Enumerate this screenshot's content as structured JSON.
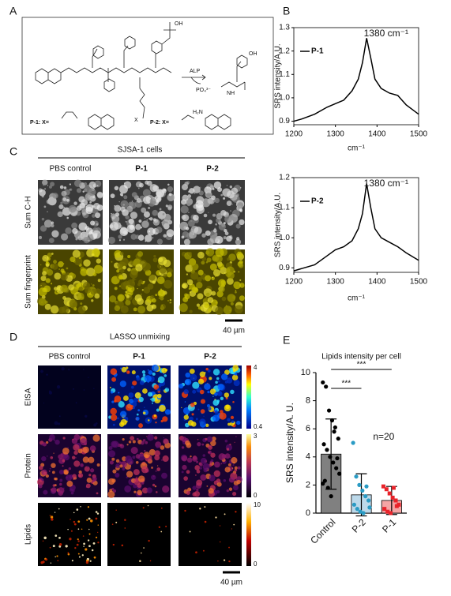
{
  "panel_labels": [
    "A",
    "B",
    "C",
    "D",
    "E"
  ],
  "scheme": {
    "enzyme": "ALP",
    "product": "PO₄³⁻",
    "p1": "P-1: X=",
    "p2": "P-2: X=",
    "oh1": "OH",
    "oh2": "OH",
    "nh": "NH",
    "x": "X",
    "h2n": "H₂N"
  },
  "cells": {
    "title": "SJSA-1 cells",
    "columns": [
      "PBS control",
      "P-1",
      "P-2"
    ],
    "rows": [
      "Sum C-H",
      "Sum fingerprint"
    ],
    "scale_bar": "40 µm"
  },
  "unmixing": {
    "title": "LASSO unmixing",
    "columns": [
      "PBS control",
      "P-1",
      "P-2"
    ],
    "rows": [
      "EISA",
      "Protein",
      "Lipids"
    ],
    "colorbars": [
      {
        "max": 4,
        "min": 0.4
      },
      {
        "max": 3,
        "min": 0
      },
      {
        "max": 10,
        "min": 0
      }
    ],
    "scale_bar": "40 µm"
  },
  "chart_data": [
    {
      "type": "line",
      "annotation": "1380 cm⁻¹",
      "xlabel": "cm⁻¹",
      "ylabel": "SRS intensity/A.U.",
      "x": [
        1200,
        1220,
        1250,
        1280,
        1300,
        1320,
        1340,
        1355,
        1365,
        1375,
        1385,
        1395,
        1410,
        1430,
        1450,
        1470,
        1500
      ],
      "series": [
        {
          "name": "P-1",
          "color": "#000000",
          "values": [
            0.9,
            0.91,
            0.93,
            0.96,
            0.975,
            0.99,
            1.03,
            1.08,
            1.15,
            1.255,
            1.17,
            1.08,
            1.04,
            1.02,
            1.01,
            0.97,
            0.93
          ]
        }
      ],
      "xlim": [
        1200,
        1500
      ],
      "ylim": [
        0.885,
        1.3
      ],
      "xticks": [
        1200,
        1300,
        1400,
        1500
      ],
      "yticks": [
        0.9,
        {
          "value": 1.0,
          "label": "1.0"
        },
        1.1,
        1.2,
        1.3
      ]
    },
    {
      "type": "line",
      "annotation": "1380 cm⁻¹",
      "xlabel": "cm⁻¹",
      "ylabel": "SRS intensity/A.U.",
      "x": [
        1200,
        1250,
        1280,
        1300,
        1320,
        1340,
        1355,
        1365,
        1375,
        1385,
        1395,
        1410,
        1430,
        1450,
        1470,
        1500
      ],
      "series": [
        {
          "name": "P-2",
          "color": "#000000",
          "values": [
            0.89,
            0.91,
            0.94,
            0.96,
            0.97,
            0.99,
            1.03,
            1.08,
            1.18,
            1.1,
            1.03,
            1.0,
            0.985,
            0.97,
            0.95,
            0.925
          ]
        }
      ],
      "xlim": [
        1200,
        1500
      ],
      "ylim": [
        0.885,
        1.2
      ],
      "xticks": [
        1200,
        1300,
        1400,
        1500
      ],
      "yticks": [
        0.9,
        {
          "value": 1.0,
          "label": "1.0"
        },
        1.1,
        1.2
      ]
    },
    {
      "type": "bar",
      "title": "Lipids intensity per cell",
      "ylabel": "SRS intensity/A. U.",
      "categories": [
        "Control",
        "P-2",
        "P-1"
      ],
      "values": [
        4.2,
        1.3,
        0.9
      ],
      "errors": [
        2.5,
        1.5,
        1.0
      ],
      "colors": [
        "#808080",
        "#bcd9ea",
        "#f4a5a5"
      ],
      "point_colors": [
        "#000000",
        "#2a9bc4",
        "#e8232a"
      ],
      "points": [
        [
          9.3,
          9.0,
          7.3,
          6.6,
          6.1,
          5.3,
          4.9,
          4.5,
          4.0,
          3.6,
          3.2,
          2.8,
          2.3,
          1.8,
          1.2,
          5.8,
          3.9,
          2.1
        ],
        [
          5.0,
          2.6,
          2.0,
          1.6,
          1.2,
          0.9,
          0.6,
          0.3,
          0.1,
          0.0,
          1.9,
          0.4
        ],
        [
          1.9,
          1.7,
          1.4,
          1.1,
          0.9,
          0.6,
          0.3,
          0.1,
          0.0,
          1.8,
          0.5
        ]
      ],
      "ylim": [
        0,
        10
      ],
      "yticks": [
        0,
        2,
        4,
        6,
        8,
        10
      ],
      "annotations": [
        "n=20",
        "***",
        "***"
      ]
    }
  ]
}
